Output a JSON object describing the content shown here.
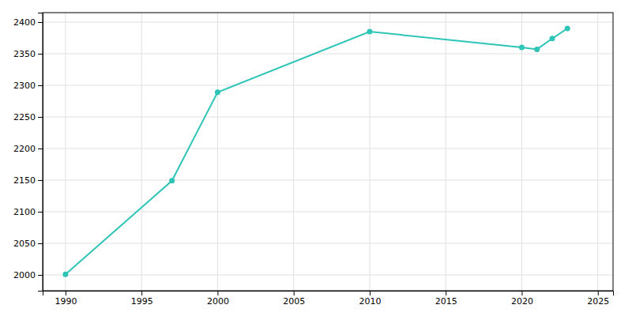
{
  "chart_data": {
    "type": "line",
    "x": [
      1990,
      1997,
      2000,
      2010,
      2020,
      2021,
      2022,
      2023
    ],
    "values": [
      2001,
      2149,
      2289,
      2385,
      2360,
      2357,
      2374,
      2390
    ],
    "color": "#2ec4b6",
    "marker": "circle",
    "xlim": [
      1988.5,
      2026
    ],
    "ylim": [
      1975,
      2415
    ],
    "xticks": [
      1990,
      1995,
      2000,
      2005,
      2010,
      2015,
      2020,
      2025
    ],
    "yticks": [
      2000,
      2050,
      2100,
      2150,
      2200,
      2250,
      2300,
      2350,
      2400
    ],
    "grid": true
  }
}
